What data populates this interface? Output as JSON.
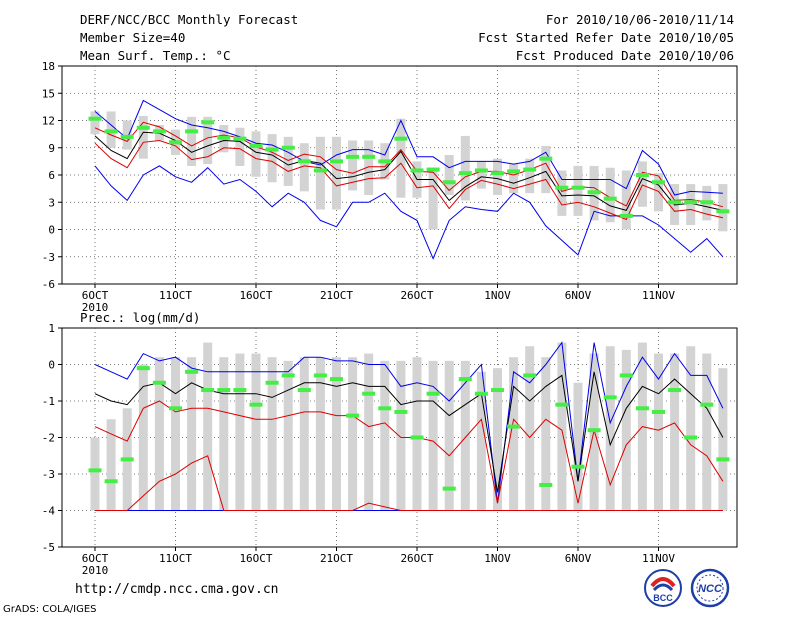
{
  "header": {
    "title": "DERF/NCC/BCC Monthly Forecast",
    "member_size": "Member Size=40",
    "variable": "Mean Surf. Temp.: °C",
    "period": "For 2010/10/06-2010/11/14",
    "fcst_started": "Fcst Started Refer Date 2010/10/05",
    "fcst_produced": "Fcst Produced Date 2010/10/06"
  },
  "footer": {
    "url": "http://cmdp.ncc.cma.gov.cn",
    "grads": "GrADS: COLA/IGES",
    "logo_left_text": "BCC",
    "logo_right_text": "NCC"
  },
  "colors": {
    "envelope": "#0000ee",
    "inner": "#dd0000",
    "mean": "#000000",
    "obs": "#44ee44",
    "bar": "#d3d3d3",
    "grid": "#555555"
  },
  "chart_data": [
    {
      "type": "line",
      "title": "Mean Surf. Temp.: °C",
      "xlabel": "",
      "ylabel": "",
      "ylim": [
        -6,
        18
      ],
      "yticks": [
        -6,
        -3,
        0,
        3,
        6,
        9,
        12,
        15,
        18
      ],
      "xlim": [
        1,
        40
      ],
      "xtick_positions": [
        1,
        6,
        11,
        16,
        21,
        26,
        31,
        36
      ],
      "xtick_labels": [
        "6OCT\n2010",
        "11OCT",
        "16OCT",
        "21OCT",
        "26OCT",
        "1NOV",
        "6NOV",
        "11NOV"
      ],
      "grid": true,
      "x": [
        1,
        2,
        3,
        4,
        5,
        6,
        7,
        8,
        9,
        10,
        11,
        12,
        13,
        14,
        15,
        16,
        17,
        18,
        19,
        20,
        21,
        22,
        23,
        24,
        25,
        26,
        27,
        28,
        29,
        30,
        31,
        32,
        33,
        34,
        35,
        36,
        37,
        38,
        39,
        40
      ],
      "series": [
        {
          "name": "max",
          "values": [
            13,
            11.5,
            10,
            14.2,
            13.2,
            12.2,
            11.5,
            11.2,
            10.8,
            10.2,
            9.5,
            9.3,
            8.5,
            7.5,
            7.1,
            8.2,
            8.8,
            8.8,
            8.2,
            12,
            8,
            8,
            6.8,
            7.5,
            7.5,
            7.5,
            7.2,
            7.5,
            8.5,
            5.5,
            5.5,
            5.5,
            5.5,
            4.5,
            8.7,
            7.2,
            3.8,
            4.2,
            4.1,
            4
          ]
        },
        {
          "name": "inner_high",
          "values": [
            11.2,
            10.4,
            9.7,
            11.8,
            11.3,
            10.3,
            9.2,
            10.1,
            10.4,
            10.1,
            9.1,
            8.5,
            7.6,
            8.3,
            8,
            6.6,
            6.2,
            6.9,
            6.9,
            8.8,
            6.4,
            6.3,
            4.3,
            5.8,
            6.4,
            6.4,
            6,
            6.6,
            7.3,
            4.2,
            4.7,
            4.6,
            3.5,
            2.6,
            6.3,
            5.9,
            3.2,
            3.3,
            3,
            2.5
          ]
        },
        {
          "name": "mean",
          "values": [
            10.3,
            8.7,
            7.8,
            10.7,
            10.6,
            9.8,
            8.5,
            9.2,
            9.8,
            9.7,
            8.5,
            8.2,
            7.1,
            7.6,
            7.3,
            5.6,
            5.8,
            6.3,
            6.6,
            8.6,
            5.5,
            5.5,
            3.2,
            4.7,
            5.8,
            5.6,
            5.1,
            5.7,
            6.4,
            3.7,
            3.8,
            3.7,
            2.6,
            2.1,
            5.6,
            4.9,
            2.7,
            2.9,
            2.5,
            2.1
          ]
        },
        {
          "name": "inner_low",
          "values": [
            9.5,
            7.8,
            6.8,
            9.6,
            9.8,
            9.2,
            7.7,
            8,
            9,
            8.9,
            7.8,
            7.5,
            6.4,
            7,
            6.8,
            4.8,
            5.2,
            5.6,
            5.7,
            7.3,
            4.6,
            4.8,
            2.3,
            4.4,
            5.4,
            5,
            4.5,
            5,
            5.5,
            2.7,
            3,
            2.5,
            1.8,
            1.1,
            4.9,
            4.2,
            2,
            2.2,
            1.7,
            1.3
          ]
        },
        {
          "name": "min",
          "values": [
            7,
            4.8,
            3.2,
            6,
            7,
            5.8,
            5.2,
            6.8,
            5,
            5.5,
            4.2,
            2.5,
            4,
            3,
            1,
            0.3,
            3,
            3,
            4,
            2,
            1,
            -3.2,
            1,
            2.5,
            2.2,
            2,
            4,
            3,
            0.4,
            -1.2,
            -2.8,
            2,
            1.5,
            1.5,
            1.5,
            0.5,
            -1,
            -2.5,
            -1,
            -3
          ]
        },
        {
          "name": "bar_top",
          "values": [
            13,
            13,
            12,
            12.5,
            11.5,
            11,
            12.4,
            12.4,
            11.5,
            11.2,
            10.8,
            10.5,
            10.2,
            9.5,
            10.2,
            10.2,
            9.8,
            9.8,
            9.5,
            12.2,
            7.5,
            6.5,
            8.2,
            10.3,
            7.5,
            7.8,
            7.2,
            7.8,
            9.2,
            6.5,
            7,
            7,
            6.8,
            6.5,
            7.5,
            6.2,
            5,
            5,
            4.8,
            5
          ]
        },
        {
          "name": "bar_bottom",
          "values": [
            10.5,
            9,
            8.8,
            7.8,
            9.8,
            8.2,
            7,
            7.2,
            8.5,
            7,
            5.8,
            5.2,
            4.8,
            4.2,
            2.2,
            2.2,
            4.3,
            3.8,
            5.5,
            3.5,
            3.5,
            0,
            3.8,
            3.2,
            4.5,
            3.8,
            4,
            4,
            4,
            1.5,
            1.5,
            1,
            0.8,
            0,
            2.5,
            2,
            0.5,
            0.5,
            1,
            -0.2
          ]
        },
        {
          "name": "observed",
          "values": [
            12.2,
            10.8,
            10.2,
            11.2,
            10.8,
            9.6,
            10.8,
            11.8,
            10.1,
            10,
            9.2,
            8.8,
            9,
            7.5,
            6.5,
            7.5,
            8,
            8,
            7.5,
            10,
            6.5,
            6.6,
            5.2,
            6.2,
            6.5,
            6.2,
            6.4,
            6.6,
            7.8,
            4.6,
            4.6,
            4.1,
            3.4,
            1.5,
            6,
            5.2,
            3,
            3,
            3,
            2
          ]
        }
      ]
    },
    {
      "type": "line",
      "title": "Prec.: log(mm/d)",
      "xlabel": "",
      "ylabel": "",
      "ylim": [
        -5,
        1
      ],
      "yticks": [
        -5,
        -4,
        -3,
        -2,
        -1,
        0,
        1
      ],
      "xlim": [
        1,
        40
      ],
      "xtick_positions": [
        1,
        6,
        11,
        16,
        21,
        26,
        31,
        36
      ],
      "xtick_labels": [
        "6OCT\n2010",
        "11OCT",
        "16OCT",
        "21OCT",
        "26OCT",
        "1NOV",
        "6NOV",
        "11NOV"
      ],
      "grid": true,
      "x": [
        1,
        2,
        3,
        4,
        5,
        6,
        7,
        8,
        9,
        10,
        11,
        12,
        13,
        14,
        15,
        16,
        17,
        18,
        19,
        20,
        21,
        22,
        23,
        24,
        25,
        26,
        27,
        28,
        29,
        30,
        31,
        32,
        33,
        34,
        35,
        36,
        37,
        38,
        39,
        40
      ],
      "series": [
        {
          "name": "max",
          "values": [
            0,
            -0.2,
            -0.4,
            0.3,
            0.1,
            0.2,
            -0.1,
            -0.2,
            -0.2,
            -0.2,
            -0.2,
            -0.2,
            -0.2,
            0.2,
            0.2,
            0.1,
            0.1,
            0,
            0,
            -0.6,
            -0.5,
            -0.6,
            -1,
            -0.5,
            0,
            -3.8,
            -0.2,
            -0.5,
            0,
            0.6,
            -3.2,
            0.6,
            -1.6,
            -0.6,
            0.2,
            -0.4,
            0.3,
            -0.3,
            -0.3,
            -1.2
          ]
        },
        {
          "name": "mean",
          "values": [
            -0.8,
            -1,
            -1.1,
            -0.6,
            -0.5,
            -0.8,
            -0.5,
            -0.7,
            -0.8,
            -0.8,
            -0.8,
            -0.9,
            -0.7,
            -0.5,
            -0.5,
            -0.6,
            -0.5,
            -0.6,
            -0.6,
            -1.1,
            -1,
            -1,
            -1.4,
            -1.1,
            -0.8,
            -3.5,
            -0.6,
            -1,
            -0.6,
            -0.3,
            -3.2,
            -0.2,
            -2.2,
            -1.2,
            -0.6,
            -0.8,
            -0.4,
            -0.8,
            -1.2,
            -2
          ]
        },
        {
          "name": "inner_high",
          "values": [
            -1.7,
            -1.9,
            -2.1,
            -1.2,
            -1,
            -1.3,
            -1.2,
            -1.2,
            -1.3,
            -1.4,
            -1.5,
            -1.5,
            -1.4,
            -1.3,
            -1.3,
            -1.4,
            -1.4,
            -1.7,
            -1.6,
            -2,
            -2,
            -2.1,
            -2.5,
            -2,
            -1.5,
            -3.8,
            -1.5,
            -2,
            -1.5,
            -1.8,
            -3.8,
            -1.8,
            -3.3,
            -2.2,
            -1.7,
            -1.8,
            -1.6,
            -2.2,
            -2.5,
            -3.2
          ]
        },
        {
          "name": "inner_low",
          "values": [
            -4,
            -4,
            -4,
            -3.6,
            -3.2,
            -3,
            -2.7,
            -2.5,
            -4,
            -4,
            -4,
            -4,
            -4,
            -4,
            -4,
            -4,
            -4,
            -3.8,
            -3.9,
            -4,
            -4,
            -4,
            -4,
            -4,
            -4,
            -4,
            -4,
            -4,
            -4,
            -4,
            -4,
            -4,
            -4,
            -4,
            -4,
            -4,
            -4,
            -4,
            -4,
            -4
          ]
        },
        {
          "name": "min",
          "values": [
            -4,
            -4,
            -4,
            -4,
            -4,
            -4,
            -4,
            -4,
            -4,
            -4,
            -4,
            -4,
            -4,
            -4,
            -4,
            -4,
            -4,
            -4,
            -4,
            -4,
            -4,
            -4,
            -4,
            -4,
            -4,
            -4,
            -4,
            -4,
            -4,
            -4,
            -4,
            -4,
            -4,
            -4,
            -4,
            -4,
            -4,
            -4,
            -4,
            -4
          ]
        },
        {
          "name": "bar_top",
          "values": [
            -2,
            -1.5,
            -1.2,
            0,
            0.2,
            0.2,
            0.2,
            0.6,
            0.2,
            0.3,
            0.3,
            0.2,
            0.1,
            0.2,
            0.2,
            0.2,
            0.2,
            0.3,
            0.1,
            0.1,
            0.2,
            0.1,
            0.1,
            0.1,
            -0.2,
            -0.1,
            0.2,
            0.5,
            0.2,
            0.6,
            -0.5,
            0.3,
            0.5,
            0.4,
            0.6,
            0.3,
            0.3,
            0.5,
            0.3,
            -0.1
          ]
        },
        {
          "name": "bar_bottom",
          "values": [
            -4,
            -4,
            -4,
            -4,
            -4,
            -4,
            -4,
            -4,
            -4,
            -4,
            -4,
            -4,
            -4,
            -4,
            -4,
            -4,
            -4,
            -4,
            -4,
            -4,
            -4,
            -4,
            -4,
            -4,
            -4,
            -4,
            -4,
            -4,
            -4,
            -4,
            -4,
            -4,
            -4,
            -4,
            -4,
            -4,
            -4,
            -4,
            -4,
            -4
          ]
        },
        {
          "name": "observed",
          "values": [
            -2.9,
            -3.2,
            -2.6,
            -0.1,
            -0.5,
            -1.2,
            -0.2,
            -0.7,
            -0.7,
            -0.7,
            -1.1,
            -0.5,
            -0.3,
            -0.7,
            -0.3,
            -0.4,
            -1.4,
            -0.8,
            -1.2,
            -1.3,
            -2,
            -0.8,
            -3.4,
            -0.4,
            -0.8,
            -0.7,
            -1.7,
            -0.3,
            -3.3,
            -1.1,
            -2.8,
            -1.8,
            -0.9,
            -0.3,
            -1.2,
            -1.3,
            -0.7,
            -2,
            -1.1,
            -2.6
          ]
        }
      ]
    }
  ]
}
